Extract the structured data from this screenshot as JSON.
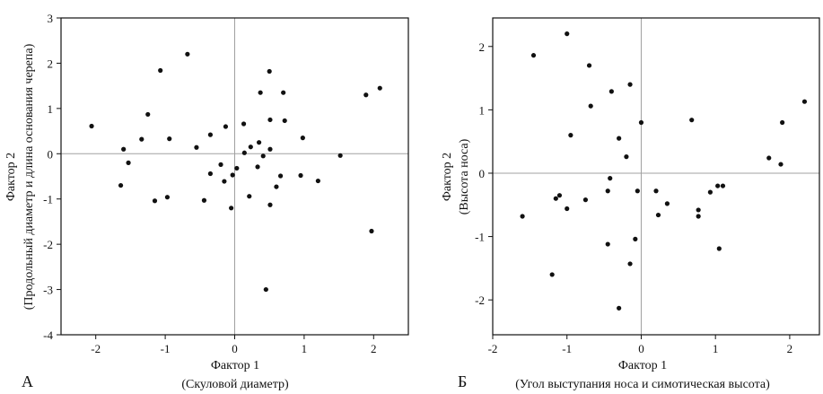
{
  "colors": {
    "axis": "#111111",
    "zero_line": "#a0a0a0",
    "point": "#111111",
    "background": "#ffffff"
  },
  "chart_data": [
    {
      "type": "scatter",
      "panel_label": "А",
      "title": "",
      "xlabel": "Фактор 1",
      "xlabel_sub": "(Скуловой диаметр)",
      "ylabel": "Фактор 2",
      "ylabel_sub": "(Продольный диаметр и длина основания черепа)",
      "xlim": [
        -2.5,
        2.5
      ],
      "ylim": [
        -4,
        3
      ],
      "xticks": [
        -2,
        -1,
        0,
        1,
        2
      ],
      "yticks": [
        -4,
        -3,
        -2,
        -1,
        0,
        1,
        2,
        3
      ],
      "zero_lines": true,
      "grid": false,
      "points": [
        {
          "x": -2.06,
          "y": 0.61
        },
        {
          "x": -1.64,
          "y": -0.7
        },
        {
          "x": -1.6,
          "y": 0.1
        },
        {
          "x": -1.53,
          "y": -0.2
        },
        {
          "x": -1.34,
          "y": 0.32
        },
        {
          "x": -1.25,
          "y": 0.87
        },
        {
          "x": -1.15,
          "y": -1.04
        },
        {
          "x": -1.07,
          "y": 1.84
        },
        {
          "x": -0.97,
          "y": -0.96
        },
        {
          "x": -0.94,
          "y": 0.33
        },
        {
          "x": -0.68,
          "y": 2.2
        },
        {
          "x": -0.55,
          "y": 0.14
        },
        {
          "x": -0.44,
          "y": -1.03
        },
        {
          "x": -0.35,
          "y": 0.42
        },
        {
          "x": -0.35,
          "y": -0.44
        },
        {
          "x": -0.2,
          "y": -0.24
        },
        {
          "x": -0.15,
          "y": -0.61
        },
        {
          "x": -0.13,
          "y": 0.6
        },
        {
          "x": -0.05,
          "y": -1.2
        },
        {
          "x": -0.03,
          "y": -0.47
        },
        {
          "x": 0.03,
          "y": -0.32
        },
        {
          "x": 0.13,
          "y": 0.66
        },
        {
          "x": 0.14,
          "y": 0.02
        },
        {
          "x": 0.21,
          "y": -0.94
        },
        {
          "x": 0.23,
          "y": 0.15
        },
        {
          "x": 0.33,
          "y": -0.29
        },
        {
          "x": 0.35,
          "y": 0.25
        },
        {
          "x": 0.37,
          "y": 1.35
        },
        {
          "x": 0.41,
          "y": -0.05
        },
        {
          "x": 0.45,
          "y": -3.0
        },
        {
          "x": 0.5,
          "y": 1.82
        },
        {
          "x": 0.51,
          "y": 0.75
        },
        {
          "x": 0.51,
          "y": 0.1
        },
        {
          "x": 0.51,
          "y": -1.13
        },
        {
          "x": 0.6,
          "y": -0.73
        },
        {
          "x": 0.66,
          "y": -0.49
        },
        {
          "x": 0.7,
          "y": 1.35
        },
        {
          "x": 0.72,
          "y": 0.73
        },
        {
          "x": 0.95,
          "y": -0.48
        },
        {
          "x": 0.98,
          "y": 0.35
        },
        {
          "x": 1.2,
          "y": -0.6
        },
        {
          "x": 1.52,
          "y": -0.04
        },
        {
          "x": 1.89,
          "y": 1.3
        },
        {
          "x": 1.97,
          "y": -1.71
        },
        {
          "x": 2.09,
          "y": 1.45
        }
      ]
    },
    {
      "type": "scatter",
      "panel_label": "Б",
      "title": "",
      "xlabel": "Фактор 1",
      "xlabel_sub": "(Угол выступания носа и симотическая высота)",
      "ylabel": "Фактор 2",
      "ylabel_sub": "(Высота носа)",
      "xlim": [
        -2,
        2.4
      ],
      "ylim": [
        -2.55,
        2.45
      ],
      "xticks": [
        -2,
        -1,
        0,
        1,
        2
      ],
      "yticks": [
        -2,
        -1,
        0,
        1,
        2
      ],
      "zero_lines": true,
      "grid": false,
      "points": [
        {
          "x": -1.6,
          "y": -0.68
        },
        {
          "x": -1.45,
          "y": 1.86
        },
        {
          "x": -1.2,
          "y": -1.6
        },
        {
          "x": -1.15,
          "y": -0.4
        },
        {
          "x": -1.1,
          "y": -0.35
        },
        {
          "x": -1.0,
          "y": 2.2
        },
        {
          "x": -1.0,
          "y": -0.56
        },
        {
          "x": -0.95,
          "y": 0.6
        },
        {
          "x": -0.75,
          "y": -0.42
        },
        {
          "x": -0.7,
          "y": 1.7
        },
        {
          "x": -0.68,
          "y": 1.06
        },
        {
          "x": -0.45,
          "y": -0.28
        },
        {
          "x": -0.45,
          "y": -1.12
        },
        {
          "x": -0.42,
          "y": -0.08
        },
        {
          "x": -0.4,
          "y": 1.29
        },
        {
          "x": -0.3,
          "y": 0.55
        },
        {
          "x": -0.3,
          "y": -2.13
        },
        {
          "x": -0.2,
          "y": 0.26
        },
        {
          "x": -0.15,
          "y": 1.4
        },
        {
          "x": -0.15,
          "y": -1.43
        },
        {
          "x": -0.08,
          "y": -1.04
        },
        {
          "x": -0.05,
          "y": -0.28
        },
        {
          "x": 0.0,
          "y": 0.8
        },
        {
          "x": 0.2,
          "y": -0.28
        },
        {
          "x": 0.23,
          "y": -0.66
        },
        {
          "x": 0.35,
          "y": -0.48
        },
        {
          "x": 0.68,
          "y": 0.84
        },
        {
          "x": 0.77,
          "y": -0.58
        },
        {
          "x": 0.77,
          "y": -0.68
        },
        {
          "x": 0.93,
          "y": -0.3
        },
        {
          "x": 1.03,
          "y": -0.2
        },
        {
          "x": 1.05,
          "y": -1.19
        },
        {
          "x": 1.1,
          "y": -0.2
        },
        {
          "x": 1.72,
          "y": 0.24
        },
        {
          "x": 1.88,
          "y": 0.14
        },
        {
          "x": 1.9,
          "y": 0.8
        },
        {
          "x": 2.2,
          "y": 1.13
        }
      ]
    }
  ]
}
